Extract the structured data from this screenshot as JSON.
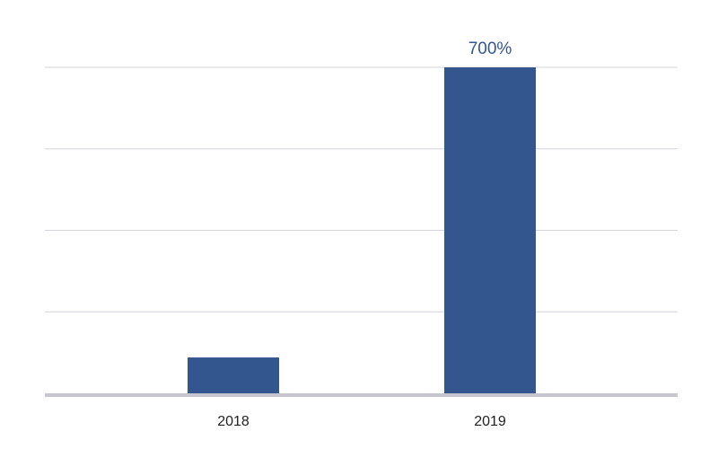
{
  "chart_data": {
    "type": "bar",
    "categories": [
      "2018",
      "2019"
    ],
    "values": [
      77,
      700
    ],
    "value_labels": [
      null,
      "700%"
    ],
    "color": "#34568f",
    "ylim": [
      0,
      700
    ],
    "yticks": [
      0,
      175,
      350,
      525,
      700
    ],
    "grid": true
  }
}
